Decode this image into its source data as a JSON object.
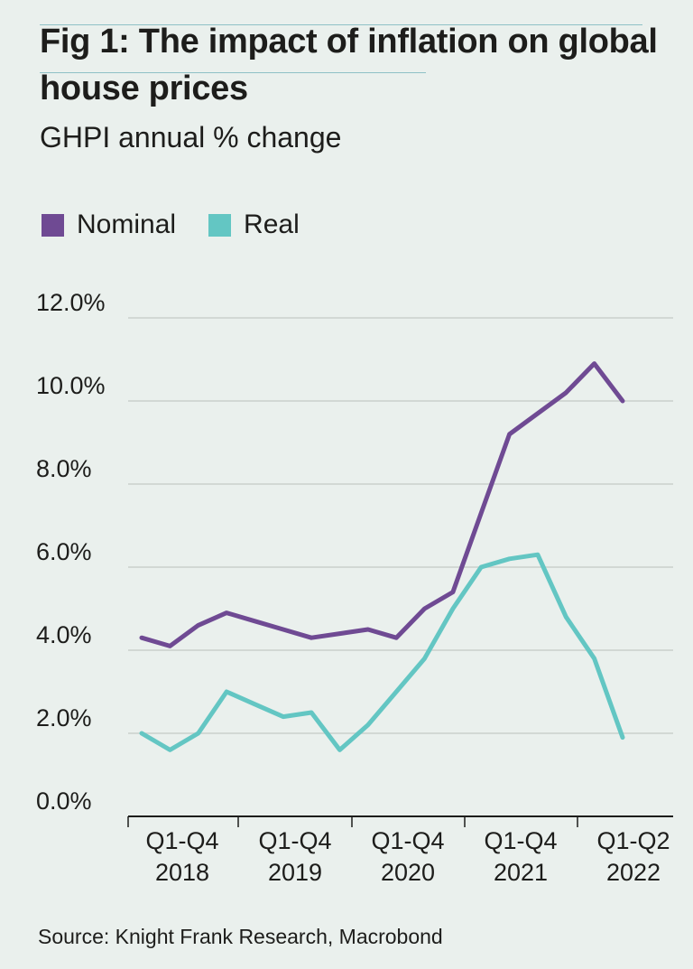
{
  "header": {
    "title": "Fig 1: The impact of inflation on global house prices",
    "subtitle": "GHPI annual % change"
  },
  "legend": [
    {
      "label": "Nominal",
      "color": "#6f4a93"
    },
    {
      "label": "Real",
      "color": "#63c6c3"
    }
  ],
  "footer": {
    "source": "Source: Knight Frank Research, Macrobond"
  },
  "chart_data": {
    "type": "line",
    "title": "Fig 1: The impact of inflation on global house prices",
    "subtitle": "GHPI annual % change",
    "ylim": [
      0,
      12
    ],
    "yticks": [
      "0.0%",
      "2.0%",
      "4.0%",
      "6.0%",
      "8.0%",
      "10.0%",
      "12.0%"
    ],
    "ytick_values": [
      0,
      2,
      4,
      6,
      8,
      10,
      12
    ],
    "categories": [
      {
        "line1": "Q1-Q4",
        "line2": "2018"
      },
      {
        "line1": "Q1-Q4",
        "line2": "2019"
      },
      {
        "line1": "Q1-Q4",
        "line2": "2020"
      },
      {
        "line1": "Q1-Q4",
        "line2": "2021"
      },
      {
        "line1": "Q1-Q2",
        "line2": "2022"
      }
    ],
    "x": [
      "Q1 2018",
      "Q2 2018",
      "Q3 2018",
      "Q4 2018",
      "Q1 2019",
      "Q2 2019",
      "Q3 2019",
      "Q4 2019",
      "Q1 2020",
      "Q2 2020",
      "Q3 2020",
      "Q4 2020",
      "Q1 2021",
      "Q2 2021",
      "Q3 2021",
      "Q4 2021",
      "Q1 2022",
      "Q2 2022"
    ],
    "series": [
      {
        "name": "Nominal",
        "color": "#6f4a93",
        "values": [
          4.3,
          4.1,
          4.6,
          4.9,
          4.7,
          4.5,
          4.3,
          4.4,
          4.5,
          4.3,
          5.0,
          5.4,
          7.3,
          9.2,
          9.7,
          10.2,
          10.9,
          10.0
        ]
      },
      {
        "name": "Real",
        "color": "#63c6c3",
        "values": [
          2.0,
          1.6,
          2.0,
          3.0,
          2.7,
          2.4,
          2.5,
          1.6,
          2.2,
          3.0,
          3.8,
          5.0,
          6.0,
          6.2,
          6.3,
          4.8,
          3.8,
          1.9
        ]
      }
    ],
    "grid": true,
    "legend_position": "top-left"
  }
}
